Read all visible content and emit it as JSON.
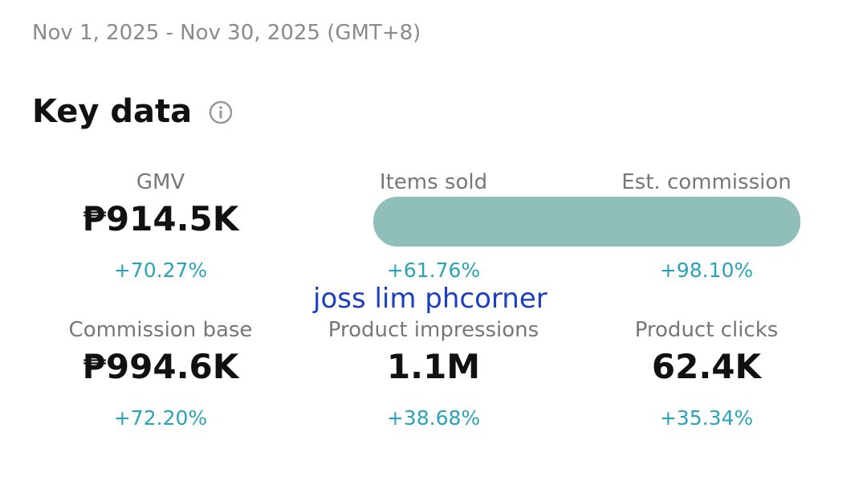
{
  "header": {
    "date_range": "Nov 1, 2025 - Nov 30, 2025 (GMT+8)",
    "title": "Key data"
  },
  "metrics": [
    {
      "label": "GMV",
      "value": "₱914.5K",
      "change": "+70.27%"
    },
    {
      "label": "Items sold",
      "change": "+61.76%"
    },
    {
      "label": "Est. commission",
      "change": "+98.10%"
    },
    {
      "label": "Commission base",
      "value": "₱994.6K",
      "change": "+72.20%"
    },
    {
      "label": "Product impressions",
      "value": "1.1M",
      "change": "+38.68%"
    },
    {
      "label": "Product clicks",
      "value": "62.4K",
      "change": "+35.34%"
    }
  ],
  "watermark": "joss lim phcorner"
}
